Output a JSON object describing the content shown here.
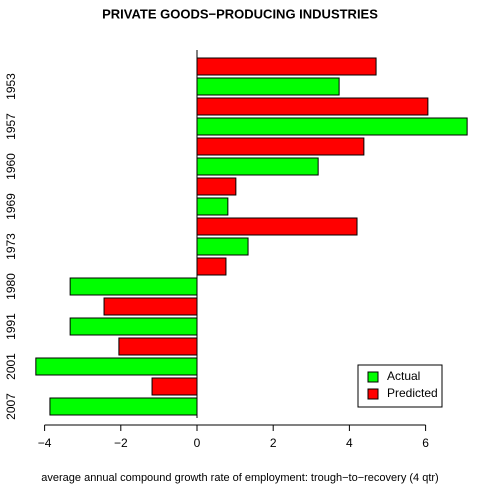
{
  "chart_data": {
    "type": "bar",
    "orientation": "horizontal",
    "title": "PRIVATE GOODS−PRODUCING INDUSTRIES",
    "x_label": "average annual compound growth rate of employment: trough−to−recovery (4 qtr)",
    "categories": [
      "1953",
      "1957",
      "1960",
      "1969",
      "1973",
      "1980",
      "1991",
      "2001",
      "2007"
    ],
    "series": [
      {
        "name": "Predicted",
        "color": "#ff0000",
        "values": [
          4.7,
          6.06,
          4.38,
          1.02,
          4.2,
          0.76,
          -2.44,
          -2.05,
          -1.18
        ]
      },
      {
        "name": "Actual",
        "color": "#00ff00",
        "values": [
          3.73,
          7.09,
          3.18,
          0.81,
          1.34,
          -3.33,
          -3.33,
          -4.23,
          -3.86
        ]
      }
    ],
    "legend_order": [
      "Actual",
      "Predicted"
    ],
    "xlim": [
      -4.25,
      7.1
    ],
    "xticks": [
      {
        "value": -4,
        "label": "−4"
      },
      {
        "value": -2,
        "label": "−2"
      },
      0,
      2,
      4,
      6
    ],
    "legend": "bottom-right"
  }
}
